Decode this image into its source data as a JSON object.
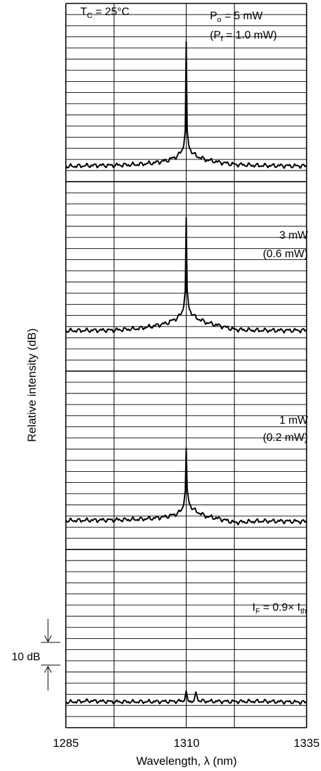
{
  "chart_data": {
    "type": "line",
    "title": "",
    "xlabel": "Wavelength, λ (nm)",
    "ylabel": "Relative intensity (dB)",
    "xlim": [
      1285,
      1335
    ],
    "x_ticks": [
      1285,
      1310,
      1335
    ],
    "grid": true,
    "scale_bar": {
      "label": "10 dB",
      "db": 10
    },
    "temperature_label": "T",
    "temperature_sub": "C",
    "temperature_value": " = 25°C",
    "panels": [
      {
        "power_prefix": "P",
        "power_sub": "o",
        "power_text": " = 5 mW",
        "front_prefix": "(P",
        "front_sub": "f",
        "front_text": " = 1.0 mW)",
        "peak_db": 55,
        "baseline_db": 0,
        "spectrum": {
          "x": [
            1285,
            1290,
            1295,
            1300,
            1303,
            1306,
            1308,
            1309,
            1309.5,
            1309.8,
            1310,
            1310.2,
            1310.5,
            1311,
            1312,
            1314,
            1317,
            1320,
            1325,
            1330,
            1335
          ],
          "y": [
            0,
            0.4,
            0.5,
            0.9,
            1.5,
            2.6,
            4.4,
            6.5,
            9.5,
            16,
            55,
            16,
            9.5,
            6.8,
            4.7,
            3.0,
            1.8,
            0.9,
            0.4,
            0.3,
            0.2
          ]
        }
      },
      {
        "power_text": "3 mW",
        "front_text": "(0.6 mW)",
        "peak_db": 50,
        "baseline_db": 0,
        "spectrum": {
          "x": [
            1285,
            1290,
            1295,
            1300,
            1303,
            1306,
            1308,
            1309,
            1309.5,
            1309.8,
            1310,
            1310.2,
            1310.5,
            1311,
            1312,
            1314,
            1317,
            1320,
            1325,
            1330,
            1335
          ],
          "y": [
            0,
            0.2,
            0.3,
            1.0,
            2.0,
            3.4,
            5.5,
            7.5,
            11,
            18,
            50,
            18,
            11,
            8.0,
            5.8,
            3.8,
            2.2,
            0.6,
            0.2,
            0.2,
            0.2
          ]
        }
      },
      {
        "power_text": "1 mW",
        "front_text": "(0.2 mW)",
        "peak_db": 32,
        "baseline_db": 0,
        "spectrum": {
          "x": [
            1285,
            1290,
            1295,
            1300,
            1303,
            1306,
            1308,
            1309,
            1309.5,
            1309.8,
            1310,
            1310.2,
            1310.5,
            1311,
            1312,
            1314,
            1317,
            1320,
            1325,
            1330,
            1335
          ],
          "y": [
            0,
            0.2,
            0.3,
            0.6,
            1.0,
            1.8,
            3.0,
            4.5,
            7.5,
            13,
            32,
            14,
            9.0,
            6.0,
            4.2,
            2.0,
            0.8,
            -0.8,
            -0.2,
            -0.2,
            -0.4
          ]
        }
      },
      {
        "power_text": "I",
        "power_sub": "F",
        "power_tail": " = 0.9× I",
        "power_tail_sub": "th",
        "peak_db": 5,
        "baseline_db": 0,
        "spectrum": {
          "x": [
            1285,
            1290,
            1295,
            1300,
            1305,
            1308,
            1309.6,
            1310,
            1310.4,
            1311,
            1311.6,
            1312,
            1312.5,
            1315,
            1320,
            1325,
            1330,
            1335
          ],
          "y": [
            0,
            0.6,
            0.2,
            0.2,
            0.3,
            0.4,
            0.6,
            5,
            0.6,
            0.5,
            0.6,
            4.5,
            0.6,
            0.4,
            0.3,
            0.4,
            0.2,
            0
          ]
        }
      }
    ]
  }
}
